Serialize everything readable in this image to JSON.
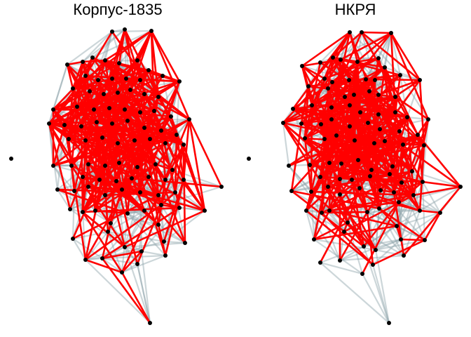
{
  "panels": [
    {
      "id": "left",
      "title": "Корпус-1835"
    },
    {
      "id": "right",
      "title": "НКРЯ"
    }
  ],
  "colors": {
    "background": "#ffffff",
    "highlight_edge": "#ff0000",
    "background_edge": "#8fa3aa",
    "node": "#000000"
  }
}
